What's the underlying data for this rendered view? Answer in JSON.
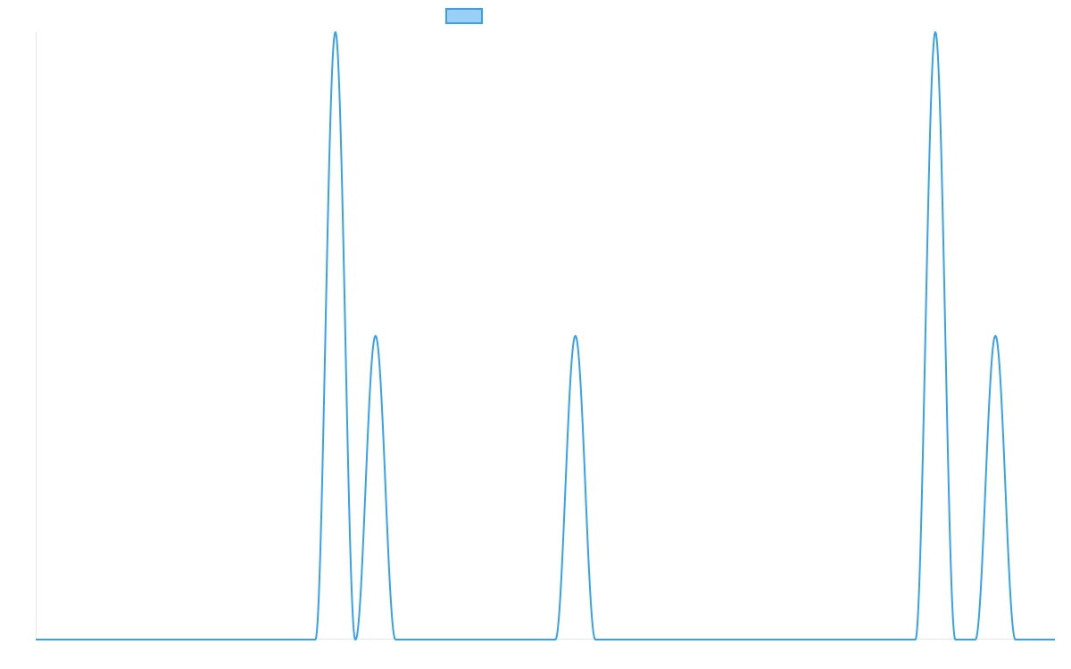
{
  "chart_data": {
    "type": "line",
    "title": "",
    "xlabel": "",
    "ylabel": "",
    "grid": false,
    "legend": {
      "position": "top-center",
      "entries": [
        {
          "label": ""
        }
      ]
    },
    "xlim": [
      0,
      1000
    ],
    "ylim": [
      0,
      1
    ],
    "series": [
      {
        "color": "#36a2eb",
        "fill_color": "#9ad0f5",
        "peaks": [
          {
            "center": 294,
            "halfwidth": 19.6,
            "height": 1.0
          },
          {
            "center": 333.4,
            "halfwidth": 19.6,
            "height": 0.5
          },
          {
            "center": 529.5,
            "halfwidth": 19.6,
            "height": 0.5
          },
          {
            "center": 882.7,
            "halfwidth": 19.6,
            "height": 1.0
          },
          {
            "center": 941.6,
            "halfwidth": 19.6,
            "height": 0.5
          }
        ]
      }
    ]
  }
}
